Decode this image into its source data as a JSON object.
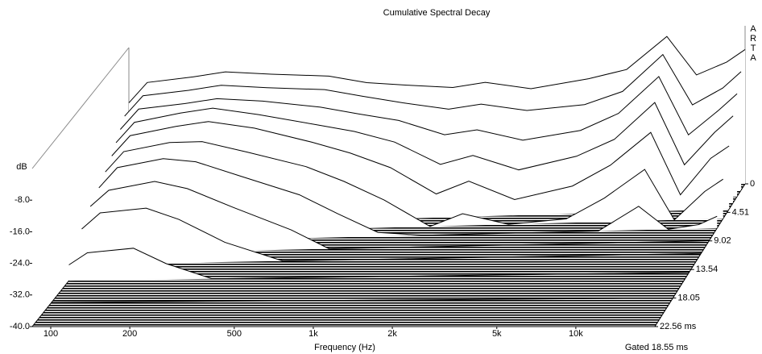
{
  "chart_data": {
    "type": "waterfall",
    "title": "Cumulative Spectral Decay",
    "xlabel": "Frequency (Hz)",
    "ylabel": "dB",
    "note": "Gated 18.55 ms",
    "watermark": "ARTA",
    "log_x": true,
    "xlim": [
      85,
      20000
    ],
    "ylim": [
      -40,
      0
    ],
    "zlim": [
      0,
      22.56
    ],
    "xticks": [
      100,
      200,
      500,
      {
        "value": 1000,
        "label": "1k"
      },
      {
        "value": 2000,
        "label": "2k"
      },
      {
        "value": 5000,
        "label": "5k"
      },
      {
        "value": 10000,
        "label": "10k"
      }
    ],
    "yticks": [
      {
        "value": -8,
        "label": "-8.0"
      },
      {
        "value": -16,
        "label": "-16.0"
      },
      {
        "value": -24,
        "label": "-24.0"
      },
      {
        "value": -32,
        "label": "-32.0"
      },
      {
        "value": -40,
        "label": "-40.0"
      }
    ],
    "zticks": [
      0,
      4.51,
      9.02,
      13.54,
      18.05,
      {
        "value": 22.56,
        "label": "22.56 ms"
      }
    ],
    "x": [
      85,
      100,
      150,
      200,
      300,
      500,
      700,
      1000,
      1500,
      2000,
      3000,
      5000,
      7000,
      10000,
      13000,
      17000,
      20000
    ],
    "color": "#000000",
    "series": [
      {
        "time": 0,
        "values": [
          -14,
          -9,
          -8,
          -7,
          -8,
          -9,
          -11,
          -12,
          -13,
          -12,
          -14,
          -12,
          -10,
          -2,
          -12,
          -9,
          -6
        ]
      },
      {
        "time": 1,
        "values": [
          -16,
          -11,
          -10,
          -9,
          -10,
          -11,
          -13,
          -15,
          -17,
          -16,
          -18,
          -17,
          -14,
          -5,
          -18,
          -14,
          -10
        ]
      },
      {
        "time": 2,
        "values": [
          -18,
          -13,
          -12,
          -11,
          -12,
          -14,
          -16,
          -18,
          -22,
          -21,
          -24,
          -22,
          -18,
          -9,
          -24,
          -18,
          -14
        ]
      },
      {
        "time": 3,
        "values": [
          -20,
          -15,
          -13,
          -12,
          -14,
          -17,
          -19,
          -22,
          -28,
          -26,
          -30,
          -27,
          -23,
          -14,
          -30,
          -22,
          -18
        ]
      },
      {
        "time": 4,
        "values": [
          -22,
          -17,
          -15,
          -14,
          -16,
          -20,
          -23,
          -27,
          -34,
          -31,
          -36,
          -33,
          -28,
          -20,
          -36,
          -27,
          -24
        ]
      },
      {
        "time": 5.5,
        "values": [
          -24,
          -19,
          -17,
          -17,
          -20,
          -24,
          -28,
          -33,
          -40,
          -37,
          -40,
          -39,
          -34,
          -27,
          -40,
          -33,
          -30
        ]
      },
      {
        "time": 7,
        "values": [
          -26,
          -21,
          -19,
          -20,
          -24,
          -29,
          -34,
          -39,
          -40,
          -40,
          -40,
          -40,
          -40,
          -34,
          -40,
          -39,
          -37
        ]
      },
      {
        "time": 9,
        "values": [
          -28,
          -24,
          -22,
          -24,
          -29,
          -35,
          -40,
          -40,
          -40,
          -40,
          -40,
          -40,
          -40,
          -40,
          -40,
          -40,
          -40
        ]
      },
      {
        "time": 11,
        "values": [
          -31,
          -27,
          -26,
          -29,
          -35,
          -40,
          -40,
          -40,
          -40,
          -40,
          -40,
          -40,
          -40,
          -40,
          -40,
          -40,
          -40
        ]
      },
      {
        "time": 14,
        "values": [
          -36,
          -33,
          -32,
          -36,
          -40,
          -40,
          -40,
          -40,
          -40,
          -40,
          -40,
          -40,
          -40,
          -40,
          -40,
          -40,
          -40
        ]
      },
      {
        "time": 18.05,
        "values": [
          -40,
          -40,
          -40,
          -40,
          -40,
          -40,
          -40,
          -40,
          -40,
          -40,
          -40,
          -40,
          -40,
          -40,
          -40,
          -40,
          -40
        ]
      },
      {
        "time": 22.56,
        "values": [
          -40,
          -40,
          -40,
          -40,
          -40,
          -40,
          -40,
          -40,
          -40,
          -40,
          -40,
          -40,
          -40,
          -40,
          -40,
          -40,
          -40
        ]
      }
    ]
  }
}
